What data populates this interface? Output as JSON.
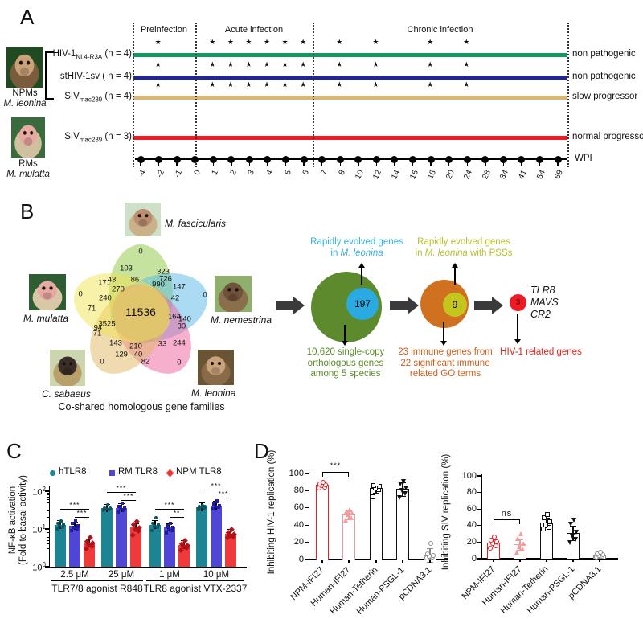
{
  "figure": {
    "panelA": {
      "label": "A",
      "phases": [
        "Preinfection",
        "Acute infection",
        "Chronic infection"
      ],
      "rows": [
        {
          "name_pre": "HIV-1",
          "name_sub": "NL4-R3A",
          "name_post": " (n = 4)",
          "outcome": "non pathogenic",
          "color": "#0f9b60"
        },
        {
          "name_pre": "stHIV-1sv",
          "name_sub": "",
          "name_post": " ( n = 4)",
          "outcome": "non pathogenic",
          "color": "#22278f"
        },
        {
          "name_pre": "SIV",
          "name_sub": "mac239",
          "name_post": " (n = 4)",
          "outcome": "slow  progressor",
          "color": "#d9b577"
        },
        {
          "name_pre": "SIV",
          "name_sub": "mac239",
          "name_post": " (n = 3)",
          "outcome": "normal  progressor",
          "color": "#ed1c24"
        }
      ],
      "npm_label": "NPMs",
      "npm_species": "M. leonina",
      "rm_label": "RMs",
      "rm_species": "M. mulatta",
      "axis_label": "WPI",
      "ticks": [
        "-4",
        "-2",
        "-1",
        "0",
        "1",
        "2",
        "3",
        "4",
        "5",
        "6",
        "7",
        "8",
        "10",
        "12",
        "14",
        "16",
        "18",
        "20",
        "24",
        "28",
        "34",
        "41",
        "54",
        "69"
      ],
      "star_tick_indices": [
        1,
        4,
        5,
        6,
        7,
        8,
        9,
        11,
        13,
        16,
        18
      ]
    },
    "panelB": {
      "label": "B",
      "species": [
        "M. fascicularis",
        "M. mulatta",
        "M. nemestrina",
        "C. sabaeus",
        "M. leonina"
      ],
      "venn_values": [
        "0",
        "103",
        "323",
        "726",
        "43",
        "86",
        "990",
        "147",
        "171",
        "270",
        "0",
        "240",
        "42",
        "0",
        "71",
        "11536",
        "164",
        "140",
        "3525",
        "94",
        "30",
        "71",
        "143",
        "210",
        "33",
        "244",
        "129",
        "40",
        "0",
        "82",
        "0"
      ],
      "caption": "Co-shared homologous gene families",
      "flow": {
        "blue": {
          "l1": "Rapidly evolved genes",
          "l2_pre": "in  ",
          "l2_it": "M. leonina",
          "l2_post": "",
          "circle_value": "197",
          "text_color": "#35b0e5",
          "circle_color": "#29abe2"
        },
        "yellow": {
          "l1": "Rapidly evolved genes",
          "l2_pre": "in ",
          "l2_it": "M. leonina",
          "l2_post": " with PSSs",
          "circle_value": "9",
          "text_color": "#b8bf2e",
          "circle_color": "#c5c51f"
        },
        "green": {
          "lines": [
            "10,620 single-copy",
            "orthologous genes",
            "among 5 species"
          ],
          "text_color": "#5a8a28",
          "circle_color": "#5c8a2c"
        },
        "orange": {
          "lines": [
            "23 immune genes from",
            "22 significant immune",
            "related GO terms"
          ],
          "text_color": "#d2601a",
          "circle_color": "#d0711f"
        },
        "red": {
          "circle_value": "3",
          "genes": [
            "TLR8",
            "MAVS",
            "CR2"
          ],
          "caption": "HIV-1 related genes",
          "text_color": "#e8231f",
          "circle_color": "#ed1c24"
        }
      }
    },
    "panelC": {
      "label": "C",
      "ylabel_l1": "NF-κB activation",
      "ylabel_l2": "(Fold to basal activity)",
      "ytick_exponents": [
        "0",
        "1",
        "2"
      ],
      "series": [
        {
          "name": "hTLR8",
          "color": "#1d8494",
          "point_color": "#0c5563",
          "marker": "circle"
        },
        {
          "name": "RM TLR8",
          "color": "#4f46d6",
          "point_color": "#231d9e",
          "marker": "square"
        },
        {
          "name": "NPM TLR8",
          "color": "#ef3a3c",
          "point_color": "#b31218",
          "marker": "diamond"
        }
      ],
      "groups": [
        {
          "dose": "2.5 μM",
          "values": [
            13,
            12,
            4.2
          ],
          "points": [
            [
              10,
              11,
              12,
              13,
              14,
              16
            ],
            [
              9,
              10,
              11,
              12,
              14,
              16
            ],
            [
              3,
              3.5,
              4,
              4.3,
              4.8,
              6
            ]
          ],
          "sig": [
            "***",
            "***"
          ]
        },
        {
          "dose": "25 μM",
          "values": [
            35,
            36,
            11
          ],
          "points": [
            [
              32,
              33,
              34,
              35,
              36,
              44
            ],
            [
              28,
              32,
              35,
              36,
              40,
              48
            ],
            [
              7,
              9,
              10,
              11,
              13,
              16
            ]
          ],
          "sig": [
            "***",
            "***"
          ]
        },
        {
          "dose": "1 μM",
          "values": [
            13,
            11,
            3.8
          ],
          "points": [
            [
              9,
              11,
              12,
              13,
              14,
              20
            ],
            [
              8,
              9,
              10,
              11,
              12,
              14
            ],
            [
              2.8,
              3.2,
              3.6,
              3.8,
              4.2,
              5
            ]
          ],
          "sig": [
            "***",
            "**"
          ]
        },
        {
          "dose": "10 μM",
          "values": [
            38,
            42,
            7.5
          ],
          "points": [
            [
              33,
              36,
              38,
              39,
              40,
              42
            ],
            [
              34,
              38,
              40,
              42,
              46,
              55
            ],
            [
              6,
              6.5,
              7,
              7.5,
              8,
              10
            ]
          ],
          "sig": [
            "***",
            "***"
          ]
        }
      ],
      "agonists": [
        "TLR7/8 agonist R848",
        "TLR8 agonist VTX-2337"
      ]
    },
    "panelD": {
      "label": "D",
      "categories": [
        "NPM-IFI27",
        "Human-IFI27",
        "Human-Tetherin",
        "Human-PSGL-1",
        "pCDNA3.1"
      ],
      "bar_colors": [
        "#ed1c24",
        "#f59a9c",
        "#111111",
        "#111111",
        "#8a8a8a"
      ],
      "markers": [
        "circle",
        "triangle",
        "square",
        "triangle-down",
        "circle"
      ],
      "yticks": [
        0,
        20,
        40,
        60,
        80,
        100
      ],
      "charts": [
        {
          "ylabel": "Inhibiting HIV-1 replication (%)",
          "values": [
            87,
            52,
            83,
            82,
            5
          ],
          "errors": [
            3,
            5,
            5,
            8,
            8
          ],
          "points": [
            [
              83,
              84,
              86,
              87,
              88,
              90
            ],
            [
              46,
              49,
              52,
              54,
              56,
              58
            ],
            [
              73,
              81,
              83,
              85,
              86,
              88
            ],
            [
              72,
              77,
              80,
              83,
              88,
              91
            ],
            [
              2,
              3,
              4,
              5,
              7,
              19
            ]
          ],
          "sig": "***"
        },
        {
          "ylabel": "Inhibiting SIV replication (%)",
          "values": [
            19,
            17,
            44,
            31,
            4
          ],
          "errors": [
            4,
            6,
            6,
            9,
            3
          ],
          "points": [
            [
              13,
              16,
              18,
              20,
              22,
              26
            ],
            [
              8,
              12,
              15,
              18,
              24,
              30
            ],
            [
              36,
              38,
              41,
              45,
              50,
              53
            ],
            [
              19,
              23,
              27,
              32,
              42,
              47
            ],
            [
              2,
              3,
              4,
              5,
              6,
              8
            ]
          ],
          "sig": "ns"
        }
      ]
    }
  }
}
